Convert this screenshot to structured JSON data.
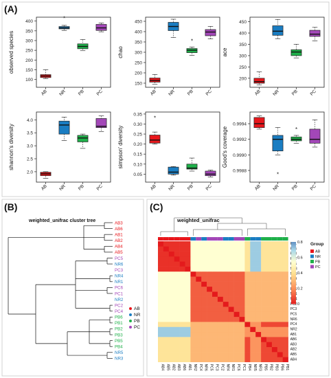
{
  "panel_labels": {
    "a": "(A)",
    "b": "(B)",
    "c": "(C)"
  },
  "colors": {
    "AB": "#e8161b",
    "NR": "#1a7dc2",
    "PB": "#1fb04a",
    "PC": "#a347b8"
  },
  "chart_data": [
    {
      "type": "box",
      "panel": "A1",
      "ylabel": "observed species",
      "categories": [
        "AB",
        "NR",
        "PB",
        "PC"
      ],
      "ylim": [
        60,
        420
      ],
      "yticks": [
        100,
        150,
        200,
        250,
        300,
        350,
        400
      ],
      "boxes": [
        {
          "min": 105,
          "q1": 110,
          "median": 118,
          "q3": 125,
          "max": 150,
          "outliers": []
        },
        {
          "min": 352,
          "q1": 360,
          "median": 365,
          "q3": 372,
          "max": 378,
          "outliers": [
            415
          ]
        },
        {
          "min": 248,
          "q1": 258,
          "median": 270,
          "q3": 283,
          "max": 305,
          "outliers": []
        },
        {
          "min": 345,
          "q1": 352,
          "median": 365,
          "q3": 383,
          "max": 390,
          "outliers": []
        }
      ]
    },
    {
      "type": "box",
      "panel": "A2",
      "ylabel": "chao",
      "categories": [
        "AB",
        "NR",
        "PB",
        "PC"
      ],
      "ylim": [
        130,
        470
      ],
      "yticks": [
        150,
        200,
        250,
        300,
        350,
        400,
        450
      ],
      "boxes": [
        {
          "min": 145,
          "q1": 155,
          "median": 163,
          "q3": 175,
          "max": 192,
          "outliers": []
        },
        {
          "min": 372,
          "q1": 405,
          "median": 425,
          "q3": 445,
          "max": 460,
          "outliers": []
        },
        {
          "min": 285,
          "q1": 298,
          "median": 310,
          "q3": 318,
          "max": 325,
          "outliers": [
            355
          ]
        },
        {
          "min": 365,
          "q1": 380,
          "median": 398,
          "q3": 410,
          "max": 425,
          "outliers": []
        }
      ]
    },
    {
      "type": "box",
      "panel": "A3",
      "ylabel": "ace",
      "categories": [
        "AB",
        "NR",
        "PB",
        "PC"
      ],
      "ylim": [
        160,
        470
      ],
      "yticks": [
        200,
        250,
        300,
        350,
        400,
        450
      ],
      "boxes": [
        {
          "min": 170,
          "q1": 178,
          "median": 185,
          "q3": 200,
          "max": 228,
          "outliers": []
        },
        {
          "min": 375,
          "q1": 390,
          "median": 408,
          "q3": 432,
          "max": 460,
          "outliers": []
        },
        {
          "min": 290,
          "q1": 300,
          "median": 316,
          "q3": 326,
          "max": 350,
          "outliers": []
        },
        {
          "min": 365,
          "q1": 385,
          "median": 395,
          "q3": 412,
          "max": 425,
          "outliers": []
        }
      ]
    },
    {
      "type": "box",
      "panel": "A4",
      "ylabel": "shannon's diversity",
      "categories": [
        "AB",
        "NR",
        "PB",
        "PC"
      ],
      "ylim": [
        1.6,
        4.3
      ],
      "yticks": [
        2.0,
        2.5,
        3.0,
        3.5,
        4.0
      ],
      "tick_decimals": 1,
      "boxes": [
        {
          "min": 1.75,
          "q1": 1.85,
          "median": 1.92,
          "q3": 1.98,
          "max": 2.0,
          "outliers": []
        },
        {
          "min": 3.2,
          "q1": 3.45,
          "median": 3.8,
          "q3": 3.95,
          "max": 4.1,
          "outliers": []
        },
        {
          "min": 2.9,
          "q1": 3.15,
          "median": 3.3,
          "q3": 3.4,
          "max": 3.45,
          "outliers": []
        },
        {
          "min": 3.55,
          "q1": 3.7,
          "median": 3.75,
          "q3": 4.05,
          "max": 4.15,
          "outliers": []
        }
      ]
    },
    {
      "type": "box",
      "panel": "A5",
      "ylabel": "simpson' diversity",
      "categories": [
        "AB",
        "NR",
        "PB",
        "PC"
      ],
      "ylim": [
        0.01,
        0.36
      ],
      "yticks": [
        0.05,
        0.1,
        0.15,
        0.2,
        0.25,
        0.3,
        0.35
      ],
      "tick_decimals": 2,
      "boxes": [
        {
          "min": 0.2,
          "q1": 0.205,
          "median": 0.22,
          "q3": 0.245,
          "max": 0.26,
          "outliers": [
            0.33
          ]
        },
        {
          "min": 0.045,
          "q1": 0.05,
          "median": 0.06,
          "q3": 0.085,
          "max": 0.088,
          "outliers": []
        },
        {
          "min": 0.065,
          "q1": 0.075,
          "median": 0.08,
          "q3": 0.1,
          "max": 0.13,
          "outliers": []
        },
        {
          "min": 0.035,
          "q1": 0.042,
          "median": 0.05,
          "q3": 0.065,
          "max": 0.07,
          "outliers": []
        }
      ]
    },
    {
      "type": "box",
      "panel": "A6",
      "ylabel": "Good's coverage",
      "categories": [
        "AB",
        "NR",
        "PB",
        "PC"
      ],
      "ylim": [
        0.99865,
        0.99955
      ],
      "yticks": [
        0.9988,
        0.999,
        0.9992,
        0.9994
      ],
      "tick_decimals": 4,
      "boxes": [
        {
          "min": 0.99933,
          "q1": 0.99935,
          "median": 0.9994,
          "q3": 0.99948,
          "max": 0.9995,
          "outliers": []
        },
        {
          "min": 0.999,
          "q1": 0.99905,
          "median": 0.9992,
          "q3": 0.99925,
          "max": 0.99935,
          "outliers": [
            0.99875
          ]
        },
        {
          "min": 0.99915,
          "q1": 0.99918,
          "median": 0.9992,
          "q3": 0.99923,
          "max": 0.99925,
          "outliers": [
            0.99933
          ]
        },
        {
          "min": 0.9991,
          "q1": 0.99915,
          "median": 0.9992,
          "q3": 0.99933,
          "max": 0.99945,
          "outliers": []
        }
      ]
    },
    {
      "type": "dendrogram",
      "panel": "B",
      "title": "weighted_unifrac cluster tree",
      "leaves": [
        {
          "label": "AB3",
          "group": "AB"
        },
        {
          "label": "AB6",
          "group": "AB"
        },
        {
          "label": "AB1",
          "group": "AB"
        },
        {
          "label": "AB2",
          "group": "AB"
        },
        {
          "label": "AB4",
          "group": "AB"
        },
        {
          "label": "AB5",
          "group": "AB"
        },
        {
          "label": "PC5",
          "group": "PC"
        },
        {
          "label": "NR6",
          "group": "NR"
        },
        {
          "label": "PC3",
          "group": "PC"
        },
        {
          "label": "NR4",
          "group": "NR"
        },
        {
          "label": "NR1",
          "group": "NR"
        },
        {
          "label": "PC6",
          "group": "PC"
        },
        {
          "label": "PC1",
          "group": "PC"
        },
        {
          "label": "NR2",
          "group": "NR"
        },
        {
          "label": "PC2",
          "group": "PC"
        },
        {
          "label": "PC4",
          "group": "PC"
        },
        {
          "label": "PB6",
          "group": "PB"
        },
        {
          "label": "PB1",
          "group": "PB"
        },
        {
          "label": "PB2",
          "group": "PB"
        },
        {
          "label": "PB3",
          "group": "PB"
        },
        {
          "label": "PB5",
          "group": "PB"
        },
        {
          "label": "PB4",
          "group": "PB"
        },
        {
          "label": "NR5",
          "group": "NR"
        },
        {
          "label": "NR3",
          "group": "NR"
        }
      ],
      "legend": [
        "AB",
        "NR",
        "PB",
        "PC"
      ]
    },
    {
      "type": "heatmap",
      "panel": "C",
      "title": "weighted_unifrac",
      "row_labels": [
        "PB1",
        "PB6",
        "PB3",
        "PB2",
        "PB5",
        "NR3",
        "NR5",
        "PB4",
        "PC1",
        "PC6",
        "NR1",
        "NR4",
        "PC2",
        "PC3",
        "PC5",
        "NR6",
        "PC4",
        "NR2",
        "AB1",
        "AB6",
        "AB3",
        "AB2",
        "AB5",
        "AB4"
      ],
      "col_labels": [
        "AB4",
        "AB5",
        "AB2",
        "AB3",
        "AB6",
        "AB1",
        "NR2",
        "PC4",
        "NR6",
        "PC5",
        "PC3",
        "PC2",
        "NR4",
        "NR1",
        "PC6",
        "PC1",
        "PB4",
        "NR5",
        "NR3",
        "PB5",
        "PB2",
        "PB3",
        "PB6",
        "PB1"
      ],
      "colorbar": {
        "min": 0,
        "max": 0.8,
        "ticks": [
          0,
          0.2,
          0.4,
          0.6,
          0.8
        ]
      },
      "legend_title": "Group",
      "legend": [
        "AB",
        "NR",
        "PB",
        "PC"
      ]
    }
  ]
}
